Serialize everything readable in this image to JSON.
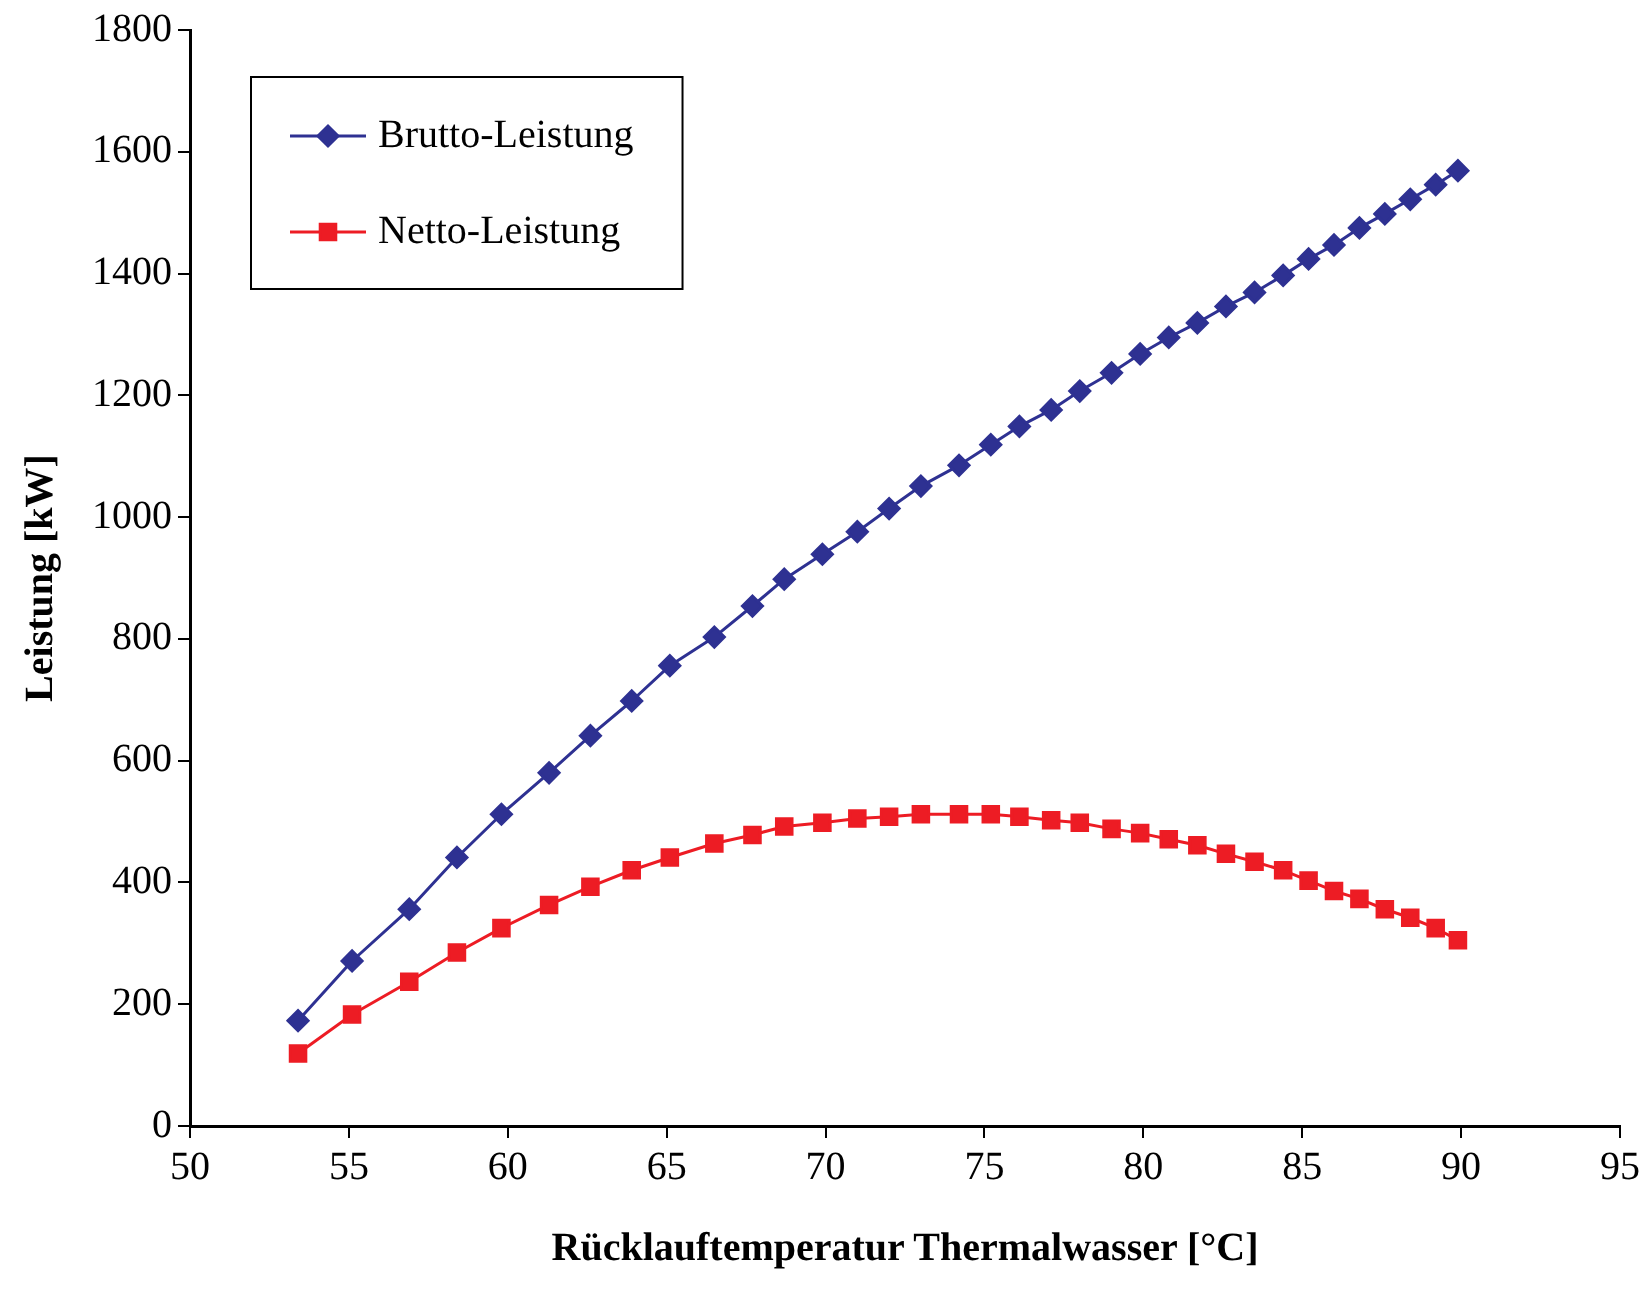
{
  "chart_data": {
    "type": "line",
    "xlabel": "Rücklauftemperatur Thermalwasser [°C]",
    "ylabel": "Leistung [kW]",
    "xlim": [
      50,
      95
    ],
    "xticks": [
      50,
      55,
      60,
      65,
      70,
      75,
      80,
      85,
      90,
      95
    ],
    "ylim": [
      0,
      1800
    ],
    "yticks": [
      0,
      200,
      400,
      600,
      800,
      1000,
      1200,
      1400,
      1600,
      1800
    ],
    "grid": false,
    "legend": "top left",
    "x": [
      53.4,
      55.1,
      56.9,
      58.4,
      59.8,
      61.3,
      62.6,
      63.9,
      65.1,
      66.5,
      67.7,
      68.7,
      69.9,
      71.0,
      72.0,
      73.0,
      74.2,
      75.2,
      76.1,
      77.1,
      78.0,
      79.0,
      79.9,
      80.8,
      81.7,
      82.6,
      83.5,
      84.4,
      85.2,
      86.0,
      86.8,
      87.6,
      88.4,
      89.2,
      89.9
    ],
    "series": [
      {
        "name": "Brutto-Leistung",
        "color": "#2e3192",
        "marker": "diamond",
        "values": [
          173,
          271,
          356,
          441,
          512,
          580,
          641,
          698,
          756,
          803,
          854,
          898,
          939,
          976,
          1014,
          1051,
          1085,
          1119,
          1149,
          1176,
          1207,
          1237,
          1268,
          1295,
          1319,
          1346,
          1369,
          1397,
          1424,
          1447,
          1475,
          1498,
          1522,
          1546,
          1569
        ]
      },
      {
        "name": "Netto-Leistung",
        "color": "#ed1c24",
        "marker": "square",
        "values": [
          119,
          183,
          237,
          285,
          325,
          363,
          393,
          420,
          441,
          464,
          478,
          492,
          498,
          505,
          508,
          512,
          512,
          512,
          508,
          502,
          498,
          488,
          481,
          471,
          461,
          447,
          434,
          420,
          403,
          386,
          373,
          356,
          342,
          325,
          305
        ]
      }
    ]
  }
}
